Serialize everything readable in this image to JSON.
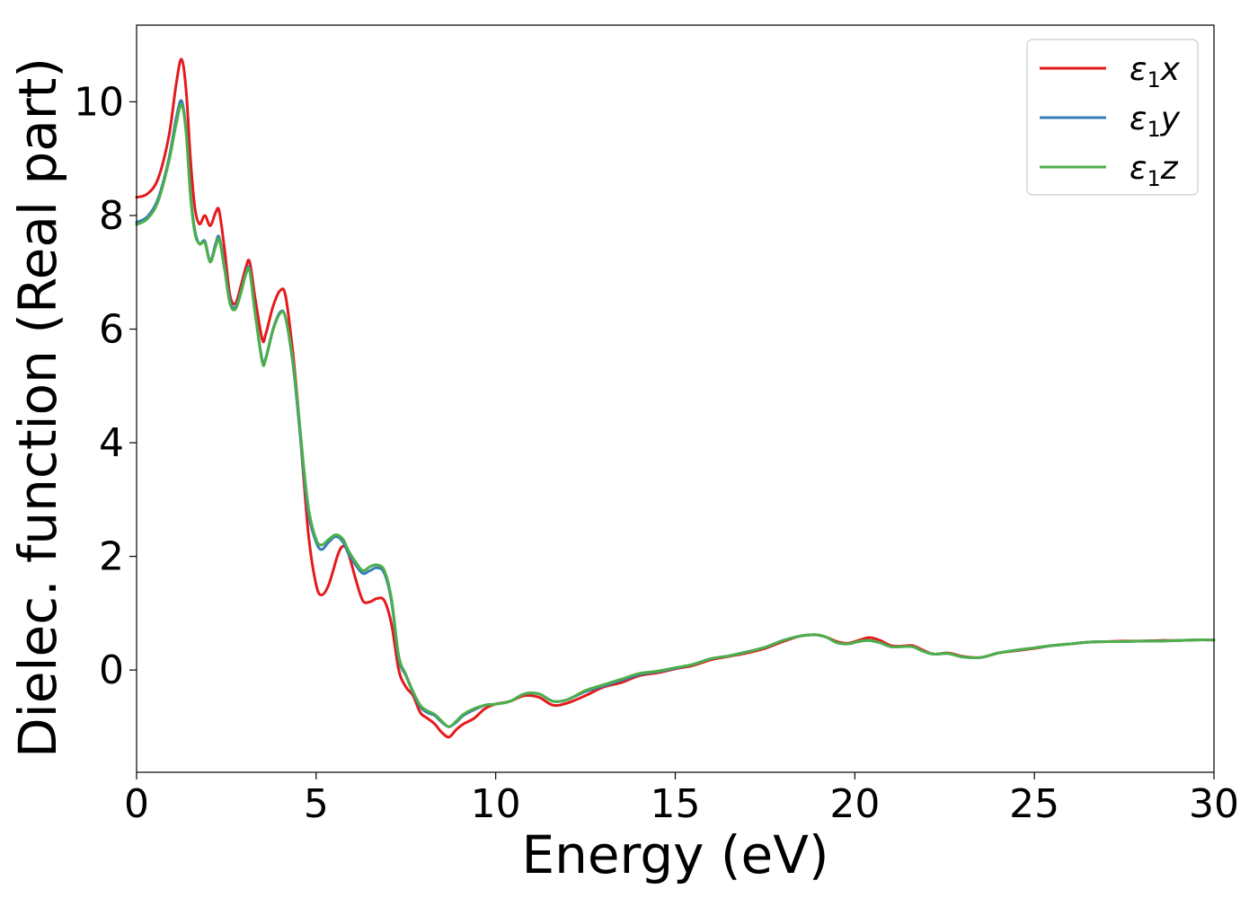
{
  "chart_data": {
    "type": "line",
    "xlabel": "Energy (eV)",
    "ylabel": "Dielec. function (Real part)",
    "xlim": [
      0,
      30
    ],
    "ylim": [
      -1.8,
      11.35
    ],
    "xticks": [
      0,
      5,
      10,
      15,
      20,
      25,
      30
    ],
    "yticks": [
      0,
      2,
      4,
      6,
      8,
      10
    ],
    "legend_position": "top-right",
    "grid": false,
    "series": [
      {
        "name": "x",
        "legend_symbol": "ε",
        "legend_subscript": "1",
        "color": "#e41a1c",
        "points": [
          [
            0,
            8.32
          ],
          [
            0.3,
            8.38
          ],
          [
            0.6,
            8.65
          ],
          [
            0.9,
            9.4
          ],
          [
            1.1,
            10.3
          ],
          [
            1.25,
            10.75
          ],
          [
            1.38,
            10.2
          ],
          [
            1.5,
            9.0
          ],
          [
            1.62,
            8.15
          ],
          [
            1.75,
            7.85
          ],
          [
            1.9,
            8.0
          ],
          [
            2.05,
            7.82
          ],
          [
            2.2,
            8.05
          ],
          [
            2.3,
            8.08
          ],
          [
            2.45,
            7.4
          ],
          [
            2.6,
            6.6
          ],
          [
            2.75,
            6.45
          ],
          [
            2.9,
            6.75
          ],
          [
            3.05,
            7.1
          ],
          [
            3.15,
            7.18
          ],
          [
            3.3,
            6.55
          ],
          [
            3.5,
            5.82
          ],
          [
            3.6,
            5.92
          ],
          [
            3.8,
            6.4
          ],
          [
            4.0,
            6.68
          ],
          [
            4.15,
            6.58
          ],
          [
            4.35,
            5.6
          ],
          [
            4.5,
            4.6
          ],
          [
            4.65,
            3.4
          ],
          [
            4.8,
            2.3
          ],
          [
            5.0,
            1.5
          ],
          [
            5.15,
            1.32
          ],
          [
            5.35,
            1.5
          ],
          [
            5.6,
            2.02
          ],
          [
            5.75,
            2.18
          ],
          [
            5.9,
            2.05
          ],
          [
            6.1,
            1.6
          ],
          [
            6.3,
            1.22
          ],
          [
            6.5,
            1.2
          ],
          [
            6.7,
            1.26
          ],
          [
            6.9,
            1.22
          ],
          [
            7.1,
            0.8
          ],
          [
            7.3,
            0.0
          ],
          [
            7.5,
            -0.3
          ],
          [
            7.7,
            -0.45
          ],
          [
            7.9,
            -0.75
          ],
          [
            8.1,
            -0.85
          ],
          [
            8.3,
            -0.95
          ],
          [
            8.5,
            -1.1
          ],
          [
            8.7,
            -1.18
          ],
          [
            8.9,
            -1.05
          ],
          [
            9.1,
            -0.95
          ],
          [
            9.4,
            -0.85
          ],
          [
            9.7,
            -0.68
          ],
          [
            10.0,
            -0.6
          ],
          [
            10.4,
            -0.55
          ],
          [
            10.8,
            -0.45
          ],
          [
            11.2,
            -0.48
          ],
          [
            11.6,
            -0.62
          ],
          [
            12.0,
            -0.58
          ],
          [
            12.5,
            -0.45
          ],
          [
            13.0,
            -0.3
          ],
          [
            13.5,
            -0.22
          ],
          [
            14.0,
            -0.1
          ],
          [
            14.5,
            -0.05
          ],
          [
            15.0,
            0.02
          ],
          [
            15.5,
            0.08
          ],
          [
            16.0,
            0.18
          ],
          [
            16.5,
            0.24
          ],
          [
            17.0,
            0.3
          ],
          [
            17.5,
            0.38
          ],
          [
            18.0,
            0.5
          ],
          [
            18.5,
            0.6
          ],
          [
            18.9,
            0.62
          ],
          [
            19.2,
            0.58
          ],
          [
            19.5,
            0.5
          ],
          [
            19.8,
            0.47
          ],
          [
            20.1,
            0.52
          ],
          [
            20.4,
            0.57
          ],
          [
            20.7,
            0.52
          ],
          [
            21.0,
            0.43
          ],
          [
            21.3,
            0.42
          ],
          [
            21.6,
            0.43
          ],
          [
            21.9,
            0.35
          ],
          [
            22.2,
            0.28
          ],
          [
            22.6,
            0.3
          ],
          [
            23.0,
            0.24
          ],
          [
            23.5,
            0.22
          ],
          [
            24.0,
            0.3
          ],
          [
            24.5,
            0.34
          ],
          [
            25.0,
            0.38
          ],
          [
            25.5,
            0.43
          ],
          [
            26.0,
            0.46
          ],
          [
            26.5,
            0.49
          ],
          [
            27.0,
            0.5
          ],
          [
            27.5,
            0.51
          ],
          [
            28.0,
            0.51
          ],
          [
            28.5,
            0.52
          ],
          [
            29.0,
            0.52
          ],
          [
            29.5,
            0.53
          ],
          [
            30.0,
            0.53
          ]
        ]
      },
      {
        "name": "y",
        "legend_symbol": "ε",
        "legend_subscript": "1",
        "color": "#377eb8",
        "points": [
          [
            0,
            7.88
          ],
          [
            0.3,
            7.98
          ],
          [
            0.6,
            8.3
          ],
          [
            0.9,
            9.0
          ],
          [
            1.1,
            9.7
          ],
          [
            1.25,
            10.02
          ],
          [
            1.38,
            9.5
          ],
          [
            1.5,
            8.4
          ],
          [
            1.62,
            7.75
          ],
          [
            1.75,
            7.5
          ],
          [
            1.9,
            7.55
          ],
          [
            2.05,
            7.2
          ],
          [
            2.2,
            7.5
          ],
          [
            2.3,
            7.62
          ],
          [
            2.45,
            7.1
          ],
          [
            2.6,
            6.5
          ],
          [
            2.75,
            6.38
          ],
          [
            2.9,
            6.65
          ],
          [
            3.05,
            7.0
          ],
          [
            3.15,
            7.05
          ],
          [
            3.3,
            6.3
          ],
          [
            3.5,
            5.45
          ],
          [
            3.6,
            5.5
          ],
          [
            3.8,
            6.0
          ],
          [
            4.0,
            6.3
          ],
          [
            4.15,
            6.2
          ],
          [
            4.35,
            5.4
          ],
          [
            4.5,
            4.5
          ],
          [
            4.65,
            3.5
          ],
          [
            4.8,
            2.7
          ],
          [
            5.0,
            2.25
          ],
          [
            5.15,
            2.12
          ],
          [
            5.35,
            2.25
          ],
          [
            5.55,
            2.35
          ],
          [
            5.75,
            2.25
          ],
          [
            5.9,
            2.05
          ],
          [
            6.1,
            1.85
          ],
          [
            6.3,
            1.7
          ],
          [
            6.5,
            1.75
          ],
          [
            6.7,
            1.8
          ],
          [
            6.9,
            1.7
          ],
          [
            7.1,
            1.2
          ],
          [
            7.3,
            0.2
          ],
          [
            7.5,
            -0.1
          ],
          [
            7.7,
            -0.4
          ],
          [
            7.9,
            -0.65
          ],
          [
            8.1,
            -0.75
          ],
          [
            8.3,
            -0.8
          ],
          [
            8.5,
            -0.92
          ],
          [
            8.7,
            -1.0
          ],
          [
            8.9,
            -0.92
          ],
          [
            9.1,
            -0.8
          ],
          [
            9.4,
            -0.7
          ],
          [
            9.7,
            -0.62
          ],
          [
            10.0,
            -0.6
          ],
          [
            10.4,
            -0.55
          ],
          [
            10.8,
            -0.42
          ],
          [
            11.2,
            -0.42
          ],
          [
            11.6,
            -0.55
          ],
          [
            12.0,
            -0.52
          ],
          [
            12.5,
            -0.38
          ],
          [
            13.0,
            -0.28
          ],
          [
            13.5,
            -0.18
          ],
          [
            14.0,
            -0.08
          ],
          [
            14.5,
            -0.03
          ],
          [
            15.0,
            0.03
          ],
          [
            15.5,
            0.1
          ],
          [
            16.0,
            0.2
          ],
          [
            16.5,
            0.25
          ],
          [
            17.0,
            0.32
          ],
          [
            17.5,
            0.4
          ],
          [
            18.0,
            0.52
          ],
          [
            18.5,
            0.6
          ],
          [
            18.9,
            0.62
          ],
          [
            19.2,
            0.58
          ],
          [
            19.5,
            0.48
          ],
          [
            19.8,
            0.46
          ],
          [
            20.1,
            0.5
          ],
          [
            20.4,
            0.52
          ],
          [
            20.7,
            0.48
          ],
          [
            21.0,
            0.41
          ],
          [
            21.3,
            0.41
          ],
          [
            21.6,
            0.41
          ],
          [
            21.9,
            0.33
          ],
          [
            22.2,
            0.28
          ],
          [
            22.6,
            0.29
          ],
          [
            23.0,
            0.23
          ],
          [
            23.5,
            0.22
          ],
          [
            24.0,
            0.3
          ],
          [
            24.5,
            0.35
          ],
          [
            25.0,
            0.39
          ],
          [
            25.5,
            0.43
          ],
          [
            26.0,
            0.46
          ],
          [
            26.5,
            0.49
          ],
          [
            27.0,
            0.5
          ],
          [
            27.5,
            0.5
          ],
          [
            28.0,
            0.51
          ],
          [
            28.5,
            0.51
          ],
          [
            29.0,
            0.52
          ],
          [
            29.5,
            0.53
          ],
          [
            30.0,
            0.53
          ]
        ]
      },
      {
        "name": "z",
        "legend_symbol": "ε",
        "legend_subscript": "1",
        "color": "#4daf4a",
        "points": [
          [
            0,
            7.84
          ],
          [
            0.3,
            7.94
          ],
          [
            0.6,
            8.25
          ],
          [
            0.9,
            8.95
          ],
          [
            1.1,
            9.6
          ],
          [
            1.25,
            9.95
          ],
          [
            1.38,
            9.45
          ],
          [
            1.5,
            8.35
          ],
          [
            1.62,
            7.7
          ],
          [
            1.75,
            7.5
          ],
          [
            1.9,
            7.52
          ],
          [
            2.05,
            7.18
          ],
          [
            2.2,
            7.45
          ],
          [
            2.3,
            7.58
          ],
          [
            2.45,
            7.05
          ],
          [
            2.6,
            6.45
          ],
          [
            2.75,
            6.35
          ],
          [
            2.9,
            6.62
          ],
          [
            3.05,
            6.98
          ],
          [
            3.15,
            7.02
          ],
          [
            3.3,
            6.28
          ],
          [
            3.5,
            5.42
          ],
          [
            3.6,
            5.48
          ],
          [
            3.8,
            5.98
          ],
          [
            4.0,
            6.28
          ],
          [
            4.15,
            6.2
          ],
          [
            4.35,
            5.45
          ],
          [
            4.5,
            4.6
          ],
          [
            4.65,
            3.6
          ],
          [
            4.8,
            2.8
          ],
          [
            5.0,
            2.3
          ],
          [
            5.15,
            2.2
          ],
          [
            5.35,
            2.3
          ],
          [
            5.55,
            2.38
          ],
          [
            5.75,
            2.3
          ],
          [
            5.9,
            2.1
          ],
          [
            6.1,
            1.9
          ],
          [
            6.3,
            1.75
          ],
          [
            6.5,
            1.82
          ],
          [
            6.7,
            1.85
          ],
          [
            6.9,
            1.75
          ],
          [
            7.1,
            1.25
          ],
          [
            7.3,
            0.25
          ],
          [
            7.5,
            -0.08
          ],
          [
            7.7,
            -0.38
          ],
          [
            7.9,
            -0.62
          ],
          [
            8.1,
            -0.72
          ],
          [
            8.3,
            -0.78
          ],
          [
            8.5,
            -0.9
          ],
          [
            8.7,
            -1.0
          ],
          [
            8.9,
            -0.9
          ],
          [
            9.1,
            -0.78
          ],
          [
            9.4,
            -0.68
          ],
          [
            9.7,
            -0.62
          ],
          [
            10.0,
            -0.6
          ],
          [
            10.4,
            -0.55
          ],
          [
            10.8,
            -0.42
          ],
          [
            11.2,
            -0.42
          ],
          [
            11.6,
            -0.55
          ],
          [
            12.0,
            -0.52
          ],
          [
            12.5,
            -0.36
          ],
          [
            13.0,
            -0.26
          ],
          [
            13.5,
            -0.16
          ],
          [
            14.0,
            -0.06
          ],
          [
            14.5,
            -0.02
          ],
          [
            15.0,
            0.04
          ],
          [
            15.5,
            0.1
          ],
          [
            16.0,
            0.2
          ],
          [
            16.5,
            0.25
          ],
          [
            17.0,
            0.32
          ],
          [
            17.5,
            0.4
          ],
          [
            18.0,
            0.52
          ],
          [
            18.5,
            0.6
          ],
          [
            18.9,
            0.62
          ],
          [
            19.2,
            0.58
          ],
          [
            19.5,
            0.48
          ],
          [
            19.8,
            0.46
          ],
          [
            20.1,
            0.5
          ],
          [
            20.4,
            0.52
          ],
          [
            20.7,
            0.48
          ],
          [
            21.0,
            0.41
          ],
          [
            21.3,
            0.41
          ],
          [
            21.6,
            0.41
          ],
          [
            21.9,
            0.33
          ],
          [
            22.2,
            0.28
          ],
          [
            22.6,
            0.29
          ],
          [
            23.0,
            0.23
          ],
          [
            23.5,
            0.22
          ],
          [
            24.0,
            0.3
          ],
          [
            24.5,
            0.35
          ],
          [
            25.0,
            0.39
          ],
          [
            25.5,
            0.43
          ],
          [
            26.0,
            0.46
          ],
          [
            26.5,
            0.49
          ],
          [
            27.0,
            0.5
          ],
          [
            27.5,
            0.5
          ],
          [
            28.0,
            0.51
          ],
          [
            28.5,
            0.51
          ],
          [
            29.0,
            0.52
          ],
          [
            29.5,
            0.53
          ],
          [
            30.0,
            0.53
          ]
        ]
      }
    ]
  }
}
